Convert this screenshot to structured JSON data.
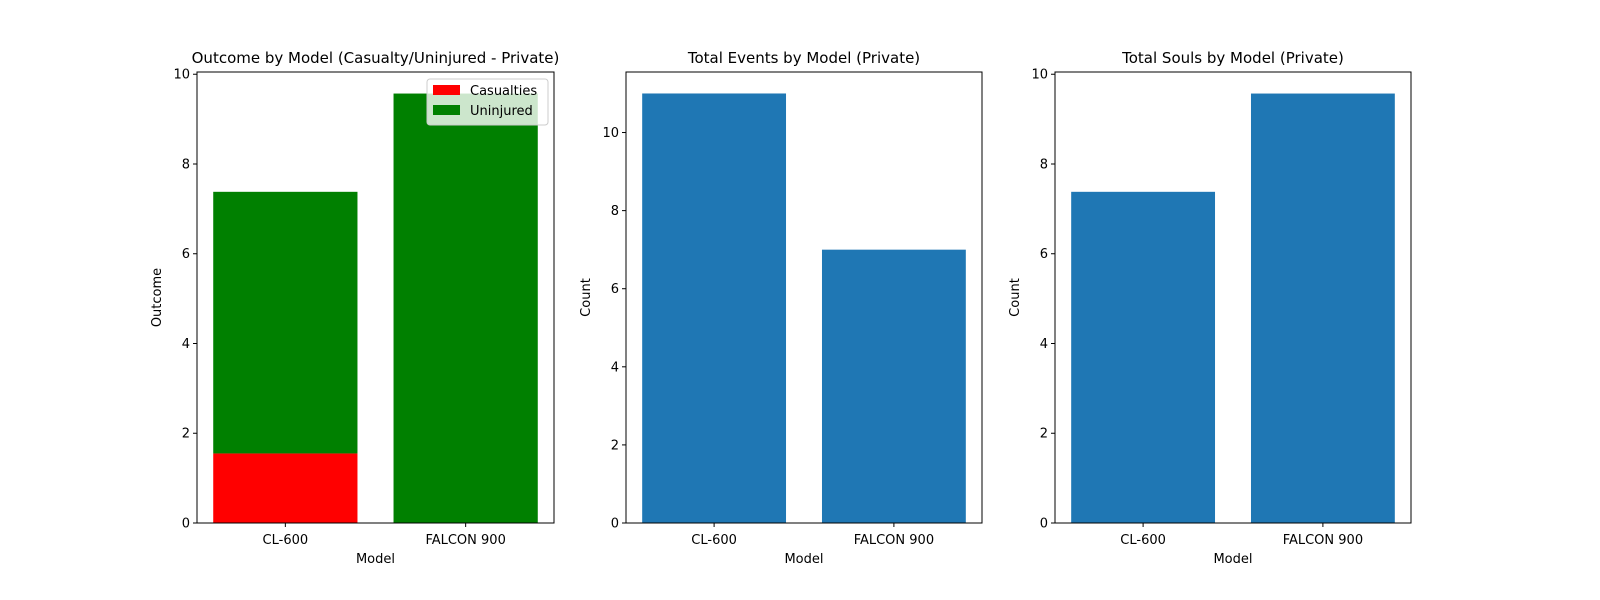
{
  "chart_data": [
    {
      "type": "bar",
      "stacked": true,
      "title": "Outcome by Model (Casualty/Uninjured - Private)",
      "xlabel": "Model",
      "ylabel": "Outcome",
      "categories": [
        "CL-600",
        "FALCON 900"
      ],
      "series": [
        {
          "name": "Casualties",
          "color": "#ff0000",
          "values": [
            1.55,
            0
          ]
        },
        {
          "name": "Uninjured",
          "color": "#008000",
          "values": [
            5.83,
            9.57
          ]
        }
      ],
      "ylim": [
        0,
        10.05
      ],
      "yticks": [
        "0",
        "2",
        "4",
        "6",
        "8",
        "10"
      ],
      "grid": false,
      "legend": "top-right"
    },
    {
      "type": "bar",
      "title": "Total Events by Model (Private)",
      "xlabel": "Model",
      "ylabel": "Count",
      "categories": [
        "CL-600",
        "FALCON 900"
      ],
      "values": [
        11,
        7
      ],
      "color": "#1f77b4",
      "ylim": [
        0,
        11.55
      ],
      "yticks": [
        "0",
        "2",
        "4",
        "6",
        "8",
        "10"
      ],
      "grid": false
    },
    {
      "type": "bar",
      "title": "Total Souls by Model (Private)",
      "xlabel": "Model",
      "ylabel": "Count",
      "categories": [
        "CL-600",
        "FALCON 900"
      ],
      "values": [
        7.38,
        9.57
      ],
      "color": "#1f77b4",
      "ylim": [
        0,
        10.05
      ],
      "yticks": [
        "0",
        "2",
        "4",
        "6",
        "8",
        "10"
      ],
      "grid": false
    }
  ]
}
